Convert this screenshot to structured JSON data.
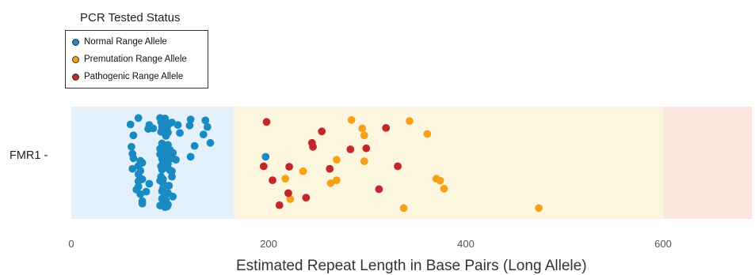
{
  "legend": {
    "title": "PCR Tested Status",
    "items": [
      {
        "label": "Normal Range Allele",
        "color": "#1a8bc2"
      },
      {
        "label": "Premutation Range Allele",
        "color": "#f5a21b"
      },
      {
        "label": "Pathogenic Range Allele",
        "color": "#c1282a"
      }
    ]
  },
  "chart_data": {
    "type": "scatter",
    "row_label": "FMR1 -",
    "xlabel": "Estimated Repeat Length in Base Pairs (Long Allele)",
    "ylabel": "",
    "xlim": [
      0,
      690
    ],
    "xticks": [
      0,
      200,
      400,
      600
    ],
    "ranges": [
      {
        "name": "Normal",
        "from": 0,
        "to": 165,
        "color": "#e4f1fb"
      },
      {
        "name": "Premutation",
        "from": 165,
        "to": 600,
        "color": "#fdf6df"
      },
      {
        "name": "Pathogenic",
        "from": 600,
        "to": 690,
        "color": "#fbe7df"
      }
    ],
    "series": [
      {
        "name": "Normal Range Allele",
        "color": "#1a8bc2",
        "points": [
          [
            68,
            0.9
          ],
          [
            90,
            0.9
          ],
          [
            95,
            0.89
          ],
          [
            121,
            0.87
          ],
          [
            136,
            0.85
          ],
          [
            91,
            0.82
          ],
          [
            96,
            0.82
          ],
          [
            102,
            0.81
          ],
          [
            92,
            0.79
          ],
          [
            99,
            0.78
          ],
          [
            60,
            0.77
          ],
          [
            79,
            0.76
          ],
          [
            108,
            0.76
          ],
          [
            120,
            0.75
          ],
          [
            138,
            0.72
          ],
          [
            92,
            0.72
          ],
          [
            97,
            0.7
          ],
          [
            78,
            0.68
          ],
          [
            83,
            0.69
          ],
          [
            95,
            0.66
          ],
          [
            91,
            0.62
          ],
          [
            98,
            0.61
          ],
          [
            110,
            0.6
          ],
          [
            134,
            0.57
          ],
          [
            63,
            0.55
          ],
          [
            96,
            0.54
          ],
          [
            141,
            0.4
          ],
          [
            92,
            0.39
          ],
          [
            98,
            0.36
          ],
          [
            125,
            0.34
          ],
          [
            61,
            0.32
          ],
          [
            94,
            0.31
          ],
          [
            90,
            0.28
          ],
          [
            100,
            0.26
          ],
          [
            97,
            0.23
          ],
          [
            103,
            0.2
          ],
          [
            62,
            0.18
          ],
          [
            90,
            0.17
          ],
          [
            95,
            0.16
          ],
          [
            121,
            0.12
          ],
          [
            63,
            0.09
          ],
          [
            92,
            0.08
          ],
          [
            98,
            0.09
          ],
          [
            102,
            0.09
          ],
          [
            106,
            0.06
          ],
          [
            70,
            0.04
          ],
          [
            72,
            0.0
          ],
          [
            93,
            0.01
          ],
          [
            98,
            -0.02
          ],
          [
            68,
            -0.06
          ],
          [
            91,
            -0.07
          ],
          [
            97,
            -0.1
          ],
          [
            62,
            -0.12
          ],
          [
            92,
            -0.14
          ],
          [
            100,
            -0.15
          ],
          [
            70,
            -0.16
          ],
          [
            102,
            -0.17
          ],
          [
            68,
            -0.23
          ],
          [
            91,
            -0.28
          ],
          [
            102,
            -0.28
          ],
          [
            72,
            -0.33
          ],
          [
            93,
            -0.33
          ],
          [
            68,
            -0.37
          ],
          [
            90,
            -0.36
          ],
          [
            93,
            -0.41
          ],
          [
            79,
            -0.42
          ],
          [
            99,
            -0.46
          ],
          [
            68,
            -0.48
          ],
          [
            93,
            -0.51
          ],
          [
            66,
            -0.54
          ],
          [
            76,
            -0.58
          ],
          [
            92,
            -0.57
          ],
          [
            98,
            -0.61
          ],
          [
            70,
            -0.63
          ],
          [
            95,
            -0.66
          ],
          [
            103,
            -0.68
          ],
          [
            92,
            -0.72
          ],
          [
            72,
            -0.77
          ],
          [
            96,
            -0.75
          ],
          [
            72,
            -0.82
          ],
          [
            93,
            -0.83
          ],
          [
            98,
            -0.84
          ],
          [
            90,
            -0.86
          ],
          [
            97,
            -0.88
          ],
          [
            95,
            -0.89
          ],
          [
            197,
            0.12
          ]
        ]
      },
      {
        "name": "Premutation Range Allele",
        "color": "#f5a21b",
        "points": [
          [
            284,
            0.86
          ],
          [
            343,
            0.84
          ],
          [
            295,
            0.69
          ],
          [
            297,
            0.55
          ],
          [
            361,
            0.58
          ],
          [
            269,
            0.06
          ],
          [
            297,
            0.03
          ],
          [
            235,
            -0.17
          ],
          [
            370,
            -0.32
          ],
          [
            217,
            -0.32
          ],
          [
            269,
            -0.35
          ],
          [
            374,
            -0.36
          ],
          [
            263,
            -0.41
          ],
          [
            378,
            -0.52
          ],
          [
            222,
            -0.73
          ],
          [
            337,
            -0.91
          ],
          [
            474,
            -0.91
          ]
        ]
      },
      {
        "name": "Pathogenic Range Allele",
        "color": "#c1282a",
        "points": [
          [
            198,
            0.82
          ],
          [
            319,
            0.7
          ],
          [
            254,
            0.63
          ],
          [
            244,
            0.4
          ],
          [
            245,
            0.32
          ],
          [
            299,
            0.29
          ],
          [
            283,
            0.27
          ],
          [
            195,
            -0.07
          ],
          [
            221,
            -0.08
          ],
          [
            262,
            -0.12
          ],
          [
            331,
            -0.07
          ],
          [
            204,
            -0.35
          ],
          [
            312,
            -0.53
          ],
          [
            220,
            -0.61
          ],
          [
            238,
            -0.7
          ],
          [
            211,
            -0.85
          ]
        ]
      }
    ]
  }
}
